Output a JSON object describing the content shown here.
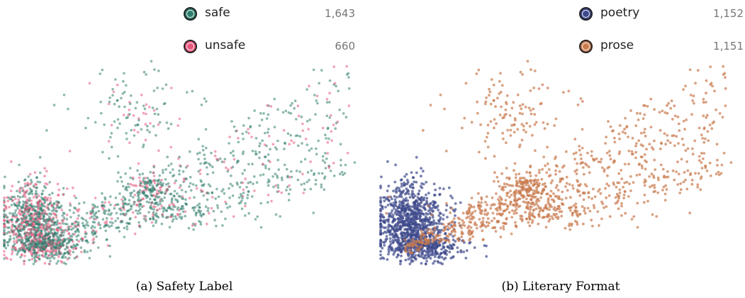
{
  "panels": [
    {
      "caption": "(a) Safety Label",
      "legend": [
        {
          "label": "safe",
          "count": "1,643",
          "color": "#2f7d6e"
        },
        {
          "label": "unsafe",
          "count": "660",
          "color": "#e8557a"
        }
      ]
    },
    {
      "caption": "(b) Literary Format",
      "legend": [
        {
          "label": "poetry",
          "count": "1,152",
          "color": "#3f4a8c"
        },
        {
          "label": "prose",
          "count": "1,151",
          "color": "#c97b4e"
        }
      ]
    }
  ],
  "chart_data": [
    {
      "type": "scatter",
      "title": "(a) Safety Label",
      "series": [
        {
          "name": "safe",
          "count": 1643,
          "color": "#2f7d6e"
        },
        {
          "name": "unsafe",
          "count": 660,
          "color": "#e8557a"
        }
      ],
      "legend": "top-right",
      "grid": false,
      "axes": false
    },
    {
      "type": "scatter",
      "title": "(b) Literary Format",
      "series": [
        {
          "name": "poetry",
          "count": 1152,
          "color": "#3f4a8c"
        },
        {
          "name": "prose",
          "count": 1151,
          "color": "#c97b4e"
        }
      ],
      "legend": "top-right",
      "grid": false,
      "axes": false
    }
  ]
}
